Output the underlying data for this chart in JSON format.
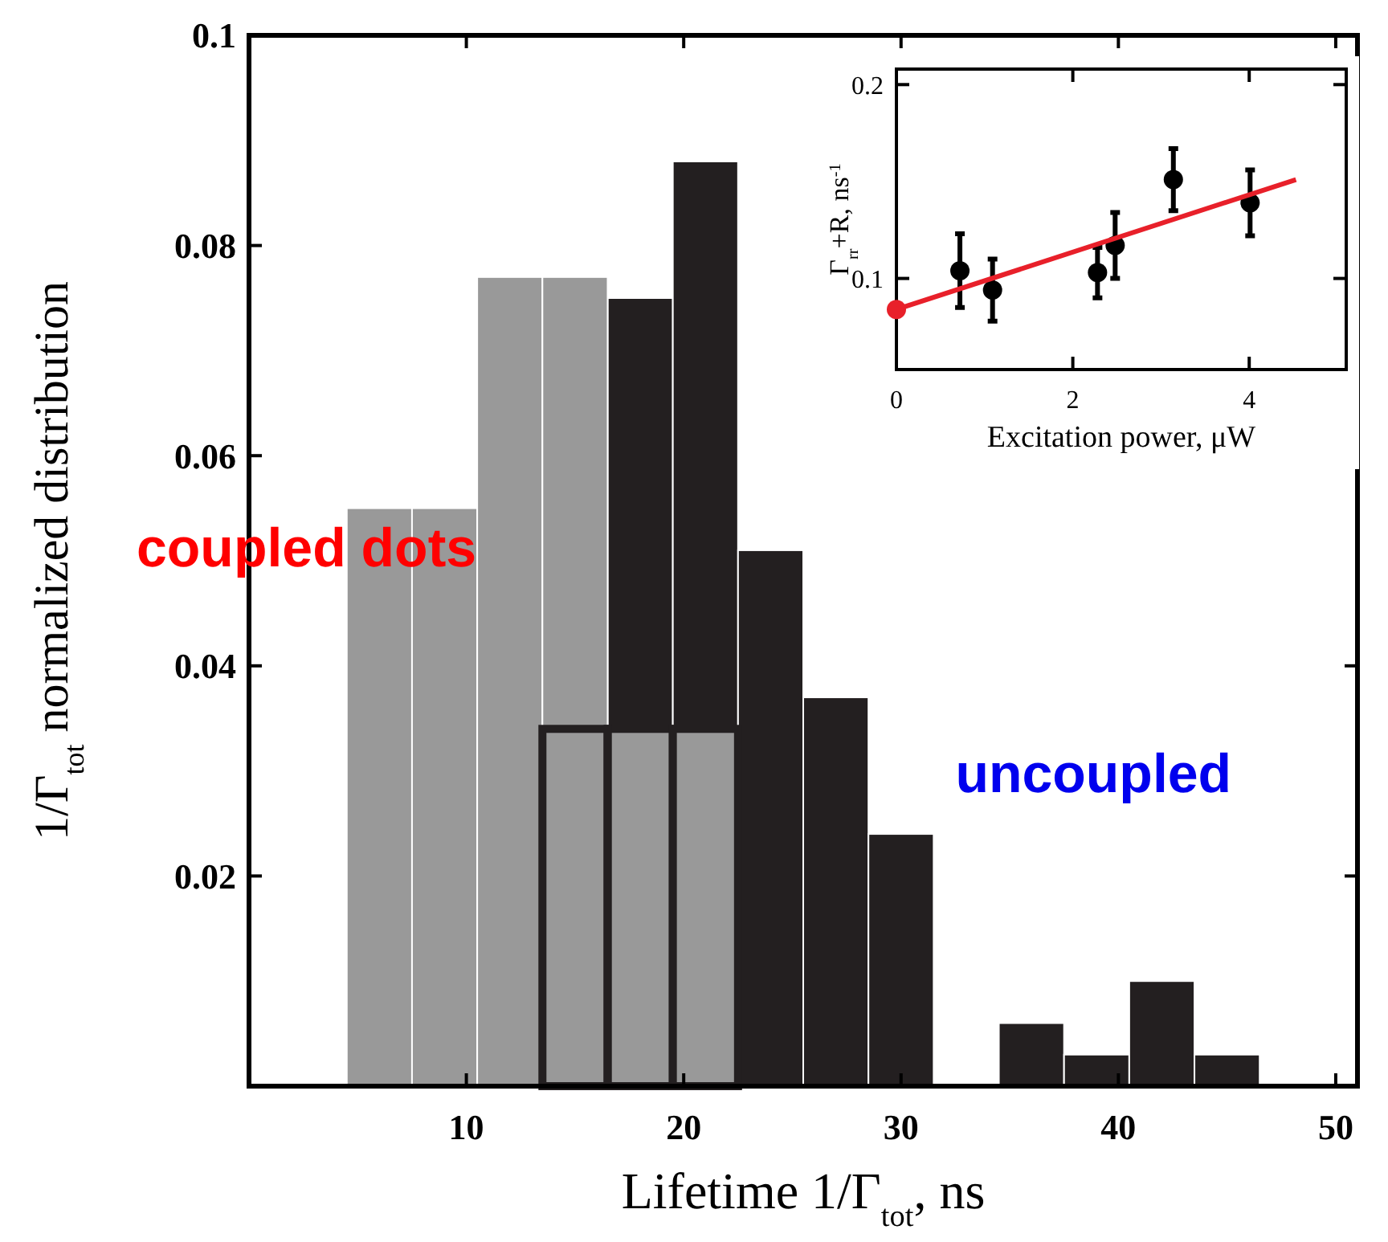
{
  "chart_data": [
    {
      "type": "histogram",
      "xlabel": "Lifetime 1/Γ$_{tot}$, ns",
      "ylabel": "1/Γ$_{tot}$ normalized distribution",
      "xlim": [
        0,
        51
      ],
      "xticks": [
        10,
        20,
        30,
        40,
        50
      ],
      "ylim": [
        0,
        0.1
      ],
      "yticks": [
        0.02,
        0.04,
        0.06,
        0.08,
        0.1
      ],
      "bins": [
        4.5,
        7.5,
        10.5,
        13.5,
        16.5,
        19.5,
        22.5,
        25.5,
        28.5,
        31.5,
        34.5,
        37.5,
        40.5,
        43.5,
        46.5
      ],
      "annotations": [
        "coupled dots",
        "uncoupled"
      ],
      "series": [
        {
          "color": "#999999",
          "values": [
            0.055,
            0.055,
            0.077,
            0.077,
            0.034,
            0.034,
            null,
            null,
            null,
            null,
            null,
            null,
            null,
            null
          ]
        },
        {
          "color": "#231f20",
          "values": [
            null,
            null,
            null,
            0.034,
            0.075,
            0.088,
            0.051,
            0.037,
            0.024,
            0,
            0.006,
            0.003,
            0.01,
            0.003
          ]
        }
      ]
    },
    {
      "type": "scatter",
      "xlabel": "Excitation power, μW",
      "ylabel": "Γ$_{rr}$+R, ns$^{-1}$",
      "xlim": [
        0,
        5.1
      ],
      "xticks": [
        0,
        2,
        4
      ],
      "ylim": [
        0.053,
        0.208
      ],
      "yticks": [
        0.1,
        0.2
      ],
      "series": [
        {
          "color": "#000000",
          "marker": "circle",
          "x": [
            0.72,
            1.09,
            2.28,
            2.48,
            3.14,
            4.01
          ],
          "values": [
            0.104,
            0.094,
            0.103,
            0.117,
            0.151,
            0.139
          ],
          "errors": [
            0.019,
            0.016,
            0.013,
            0.017,
            0.016,
            0.017
          ]
        },
        {
          "color": "#e8202a",
          "marker": "circle",
          "x": [
            0
          ],
          "values": [
            0.084
          ]
        },
        {
          "type": "line",
          "color": "#e8202a",
          "x": [
            0,
            4.53
          ],
          "values": [
            0.084,
            0.151
          ]
        }
      ]
    }
  ]
}
